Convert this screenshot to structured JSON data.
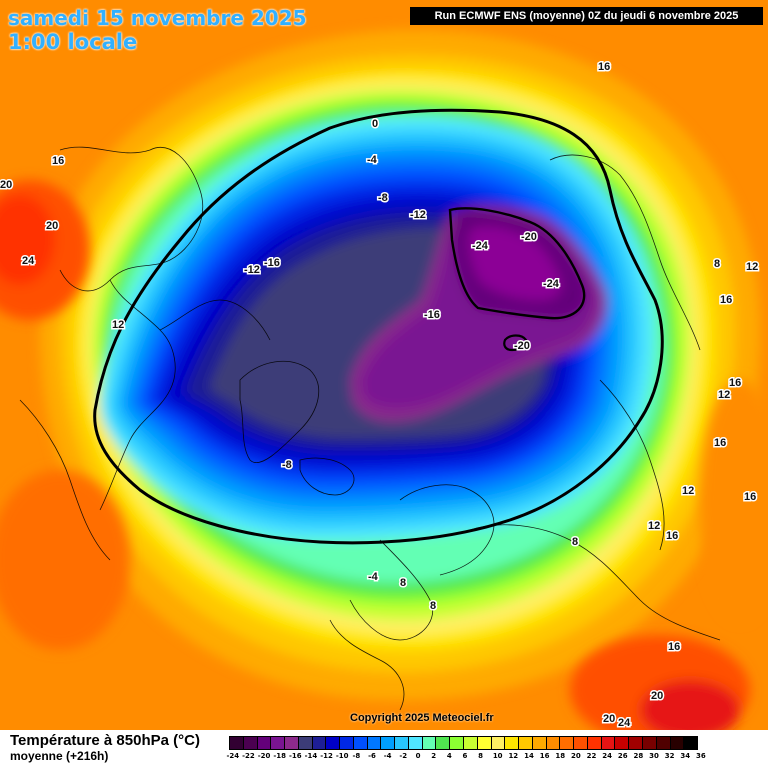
{
  "header": {
    "date": "samedi 15 novembre 2025",
    "time": "1:00 locale",
    "run": "Run ECMWF ENS (moyenne) 0Z du jeudi 6 novembre 2025"
  },
  "copyright": "Copyright 2025 Meteociel.fr",
  "footer": {
    "title": "Température à 850hPa (°C)",
    "subtitle": "moyenne   (+216h)"
  },
  "scale": {
    "colors": [
      "#320032",
      "#4b0050",
      "#64007a",
      "#7a1492",
      "#8c2a8c",
      "#3c3c78",
      "#1e1e96",
      "#0000c8",
      "#0028e6",
      "#0050ff",
      "#0078ff",
      "#00a0ff",
      "#28c8ff",
      "#50e6ff",
      "#64ffb4",
      "#50e650",
      "#8cff32",
      "#c8ff32",
      "#ffff32",
      "#fff064",
      "#ffe600",
      "#ffc800",
      "#ffaa00",
      "#ff8c00",
      "#ff6e00",
      "#ff5000",
      "#ff3200",
      "#e61414",
      "#c80000",
      "#a00000",
      "#780000",
      "#500000",
      "#280000",
      "#000000"
    ],
    "ticks": [
      "-24",
      "-22",
      "-20",
      "-18",
      "-16",
      "-14",
      "-12",
      "-10",
      "-8",
      "-6",
      "-4",
      "-2",
      "0",
      "2",
      "4",
      "6",
      "8",
      "10",
      "12",
      "14",
      "16",
      "18",
      "20",
      "22",
      "24",
      "26",
      "28",
      "30",
      "32",
      "34",
      "36"
    ]
  },
  "map_labels": [
    "16",
    "16",
    "20",
    "20",
    "24",
    "12",
    "0",
    "-4",
    "-8",
    "-12",
    "-12",
    "-16",
    "-24",
    "-20",
    "-24",
    "-16",
    "-20",
    "8",
    "12",
    "16",
    "16",
    "12",
    "16",
    "12",
    "12",
    "16",
    "16",
    "-8",
    "-4",
    "8",
    "8",
    "8",
    "20",
    "16",
    "20",
    "24"
  ]
}
